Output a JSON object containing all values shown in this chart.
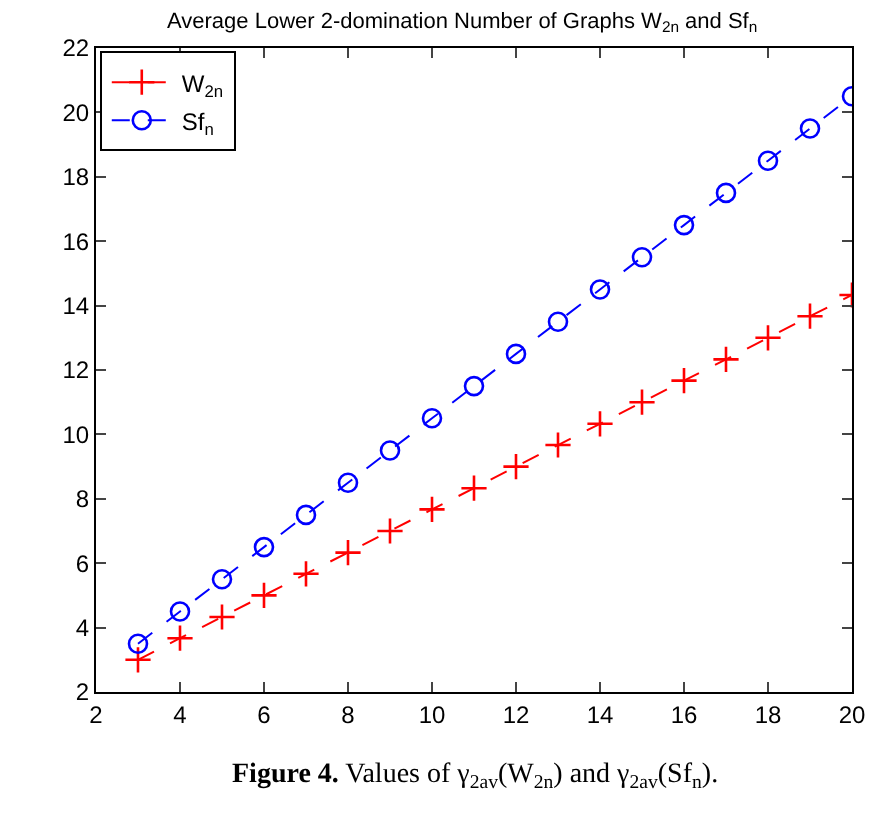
{
  "chart_data": {
    "type": "line",
    "title": "Average Lower 2-domination Number of Graphs W$_{2n}$ and Sf$_{n}$",
    "x": [
      3,
      4,
      5,
      6,
      7,
      8,
      9,
      10,
      11,
      12,
      13,
      14,
      15,
      16,
      17,
      18,
      19,
      20
    ],
    "series": [
      {
        "name": "W$_{2n}$",
        "color": "#ff0000",
        "marker": "cross",
        "values": [
          3,
          3.67,
          4.33,
          5,
          5.67,
          6.33,
          7,
          7.67,
          8.33,
          9,
          9.67,
          10.33,
          11,
          11.67,
          12.33,
          13,
          13.67,
          14.33
        ]
      },
      {
        "name": "Sf$_{n}$",
        "color": "#0000ff",
        "marker": "circle",
        "values": [
          3.5,
          4.5,
          5.5,
          6.5,
          7.5,
          8.5,
          9.5,
          10.5,
          11.5,
          12.5,
          13.5,
          14.5,
          15.5,
          16.5,
          17.5,
          18.5,
          19.5,
          20.5
        ]
      }
    ],
    "line_style": "dashed",
    "xlim": [
      2,
      20
    ],
    "xticks": [
      2,
      4,
      6,
      8,
      10,
      12,
      14,
      16,
      18,
      20
    ],
    "ylim": [
      2,
      22
    ],
    "yticks": [
      2,
      4,
      6,
      8,
      10,
      12,
      14,
      16,
      18,
      20,
      22
    ],
    "grid": false,
    "legend": "top left",
    "annotations": [
      "Figure 4. Values of γ$_{2av}$(W$_{2n}$) and γ$_{2av}$(Sf$_{n}$)."
    ]
  }
}
